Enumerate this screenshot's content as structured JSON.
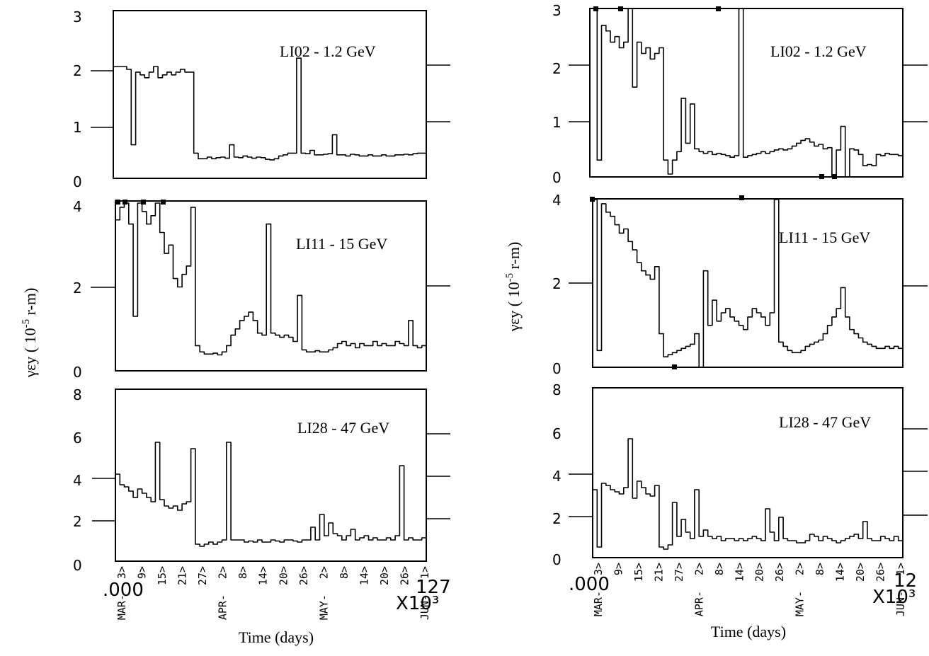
{
  "chart_data": [
    {
      "type": "line",
      "column": "left",
      "title": "LI02 - 1.2 GeV",
      "ylim": [
        0,
        3
      ],
      "yticks": [
        "0",
        "1",
        "2",
        "3"
      ],
      "series": [
        {
          "values": [
            2.0,
            2.0,
            2.0,
            1.95,
            0.6,
            1.9,
            1.85,
            1.8,
            1.9,
            2.0,
            1.8,
            1.85,
            1.9,
            1.85,
            1.9,
            1.95,
            1.9,
            1.9,
            0.45,
            0.35,
            0.35,
            0.38,
            0.35,
            0.37,
            0.38,
            0.36,
            0.6,
            0.38,
            0.37,
            0.4,
            0.38,
            0.36,
            0.38,
            0.37,
            0.34,
            0.33,
            0.35,
            0.4,
            0.42,
            0.45,
            0.45,
            2.15,
            0.45,
            0.44,
            0.5,
            0.42,
            0.42,
            0.43,
            0.44,
            0.78,
            0.42,
            0.42,
            0.4,
            0.43,
            0.42,
            0.4,
            0.4,
            0.42,
            0.4,
            0.4,
            0.42,
            0.4,
            0.4,
            0.42,
            0.42,
            0.43,
            0.42,
            0.44,
            0.45,
            0.45,
            0.46
          ]
        }
      ]
    },
    {
      "type": "line",
      "column": "left",
      "title": "LI11 - 15 GeV",
      "ylim": [
        0,
        4
      ],
      "yticks": [
        "0",
        "2",
        "4"
      ],
      "series": [
        {
          "values": [
            3.6,
            3.9,
            4.0,
            3.5,
            1.3,
            4.0,
            3.8,
            3.5,
            3.7,
            4.0,
            3.3,
            2.8,
            3.0,
            2.2,
            2.0,
            2.3,
            2.5,
            3.9,
            0.6,
            0.45,
            0.4,
            0.4,
            0.42,
            0.38,
            0.45,
            0.6,
            0.85,
            1.0,
            1.2,
            1.3,
            1.4,
            1.2,
            0.9,
            0.85,
            3.5,
            0.9,
            0.85,
            0.8,
            0.85,
            0.8,
            0.7,
            1.8,
            0.5,
            0.45,
            0.45,
            0.48,
            0.45,
            0.45,
            0.5,
            0.55,
            0.65,
            0.7,
            0.6,
            0.65,
            0.55,
            0.65,
            0.6,
            0.6,
            0.7,
            0.6,
            0.65,
            0.6,
            0.6,
            0.7,
            0.65,
            0.6,
            1.2,
            0.6,
            0.55,
            0.6,
            0.55
          ]
        }
      ]
    },
    {
      "type": "line",
      "column": "left",
      "title": "LI28 - 47 GeV",
      "ylim": [
        0,
        8
      ],
      "yticks": [
        "0",
        "2",
        "4",
        "6",
        "8"
      ],
      "series": [
        {
          "values": [
            4.1,
            3.6,
            3.5,
            3.3,
            3.0,
            3.4,
            3.2,
            3.0,
            2.8,
            5.6,
            2.9,
            2.6,
            2.5,
            2.6,
            2.4,
            2.7,
            2.8,
            5.3,
            0.8,
            0.7,
            0.8,
            0.9,
            0.8,
            0.9,
            1.0,
            5.6,
            1.0,
            1.0,
            1.0,
            0.9,
            0.95,
            0.9,
            1.0,
            0.9,
            0.9,
            1.0,
            0.95,
            0.9,
            1.0,
            1.0,
            0.95,
            0.9,
            1.0,
            1.0,
            1.6,
            1.0,
            2.2,
            1.2,
            1.8,
            1.3,
            1.2,
            1.0,
            1.2,
            1.5,
            1.0,
            1.1,
            1.2,
            1.0,
            1.1,
            1.0,
            1.0,
            1.1,
            1.0,
            1.2,
            4.5,
            1.0,
            1.1,
            1.0,
            1.0,
            1.1,
            1.0
          ]
        }
      ]
    },
    {
      "type": "line",
      "column": "right",
      "title": "LI02 - 1.2 GeV",
      "ylim": [
        0,
        3
      ],
      "yticks": [
        "0",
        "1",
        "2",
        "3"
      ],
      "series": [
        {
          "values": [
            3.0,
            0.3,
            2.7,
            2.6,
            2.4,
            2.5,
            2.3,
            2.4,
            3.0,
            1.6,
            2.4,
            2.2,
            2.3,
            2.1,
            2.2,
            2.3,
            0.3,
            0.05,
            0.3,
            0.45,
            1.4,
            0.6,
            1.3,
            0.5,
            0.45,
            0.42,
            0.45,
            0.4,
            0.42,
            0.4,
            0.38,
            0.35,
            0.38,
            3.0,
            0.35,
            0.38,
            0.4,
            0.42,
            0.45,
            0.42,
            0.45,
            0.48,
            0.5,
            0.48,
            0.5,
            0.55,
            0.6,
            0.65,
            0.68,
            0.62,
            0.55,
            0.58,
            0.5,
            0.52,
            0.0,
            0.48,
            0.9,
            0.0,
            0.5,
            0.48,
            0.4,
            0.2,
            0.22,
            0.2,
            0.4,
            0.38,
            0.42,
            0.4,
            0.4,
            0.38,
            0.38
          ]
        }
      ]
    },
    {
      "type": "line",
      "column": "right",
      "title": "LI11 - 15 GeV",
      "ylim": [
        0,
        4
      ],
      "yticks": [
        "0",
        "2",
        "4"
      ],
      "series": [
        {
          "values": [
            4.0,
            0.4,
            3.9,
            3.7,
            3.6,
            3.4,
            3.2,
            3.3,
            3.0,
            2.8,
            2.5,
            2.3,
            2.2,
            2.1,
            2.4,
            0.8,
            0.25,
            0.3,
            0.35,
            0.4,
            0.45,
            0.5,
            0.55,
            0.8,
            0.0,
            2.3,
            1.0,
            1.6,
            1.1,
            1.3,
            1.4,
            1.2,
            1.1,
            1.0,
            0.9,
            1.2,
            1.4,
            1.3,
            1.2,
            1.0,
            1.3,
            4.0,
            0.6,
            0.5,
            0.4,
            0.35,
            0.35,
            0.4,
            0.5,
            0.55,
            0.6,
            0.65,
            0.8,
            1.0,
            1.2,
            1.4,
            1.9,
            1.2,
            0.9,
            0.8,
            0.7,
            0.6,
            0.55,
            0.5,
            0.45,
            0.45,
            0.5,
            0.45,
            0.5,
            0.45,
            0.5
          ]
        }
      ]
    },
    {
      "type": "line",
      "column": "right",
      "title": "LI28 - 47 GeV",
      "ylim": [
        0,
        8
      ],
      "yticks": [
        "0",
        "2",
        "4",
        "6",
        "8"
      ],
      "series": [
        {
          "values": [
            3.2,
            0.5,
            3.5,
            3.4,
            3.2,
            3.1,
            3.0,
            3.3,
            5.6,
            2.8,
            3.6,
            3.3,
            3.0,
            2.9,
            3.4,
            0.5,
            0.4,
            0.6,
            2.6,
            1.0,
            1.8,
            1.2,
            0.9,
            3.2,
            1.0,
            1.3,
            1.0,
            0.9,
            1.0,
            0.8,
            0.9,
            0.9,
            0.8,
            0.9,
            0.8,
            0.9,
            1.0,
            0.9,
            0.8,
            2.3,
            1.2,
            0.8,
            1.9,
            0.9,
            0.8,
            0.8,
            0.7,
            0.7,
            0.8,
            1.1,
            1.0,
            0.8,
            1.0,
            0.9,
            0.8,
            0.7,
            0.8,
            0.9,
            1.0,
            1.1,
            0.9,
            1.7,
            0.9,
            0.8,
            0.8,
            1.0,
            0.9,
            0.8,
            1.0,
            0.8,
            0.9
          ]
        }
      ]
    }
  ],
  "left": {
    "ylabel": "γεy ( 10",
    "ylabel_exp": "-5",
    "ylabel_tail": " r-m)",
    "xlabel": "Time (days)",
    "x_origin": ".000",
    "x_scale": "X10³",
    "x_end": "127",
    "day_ticks": [
      "3>",
      "9>",
      "15>",
      "21>",
      "27>",
      "2>",
      "8>",
      "14>",
      "20>",
      "26>",
      "2>",
      "8>",
      "14>",
      "20>",
      "26>",
      "1>"
    ],
    "month_labels": [
      "MAR-",
      "APR-",
      "MAY-",
      "JUN-"
    ]
  },
  "right": {
    "ylabel": "γεy ( 10",
    "ylabel_exp": "-5",
    "ylabel_tail": " r-m)",
    "xlabel": "Time (days)",
    "x_origin": ".000",
    "x_scale": "X10³",
    "x_end": "12",
    "day_ticks": [
      "3>",
      "9>",
      "15>",
      "21>",
      "27>",
      "2>",
      "8>",
      "14>",
      "20>",
      "26>",
      "2>",
      "8>",
      "14>",
      "20>",
      "26>",
      "1>"
    ],
    "month_labels": [
      "MAR-",
      "APR-",
      "MAY-",
      "JUN-"
    ]
  }
}
